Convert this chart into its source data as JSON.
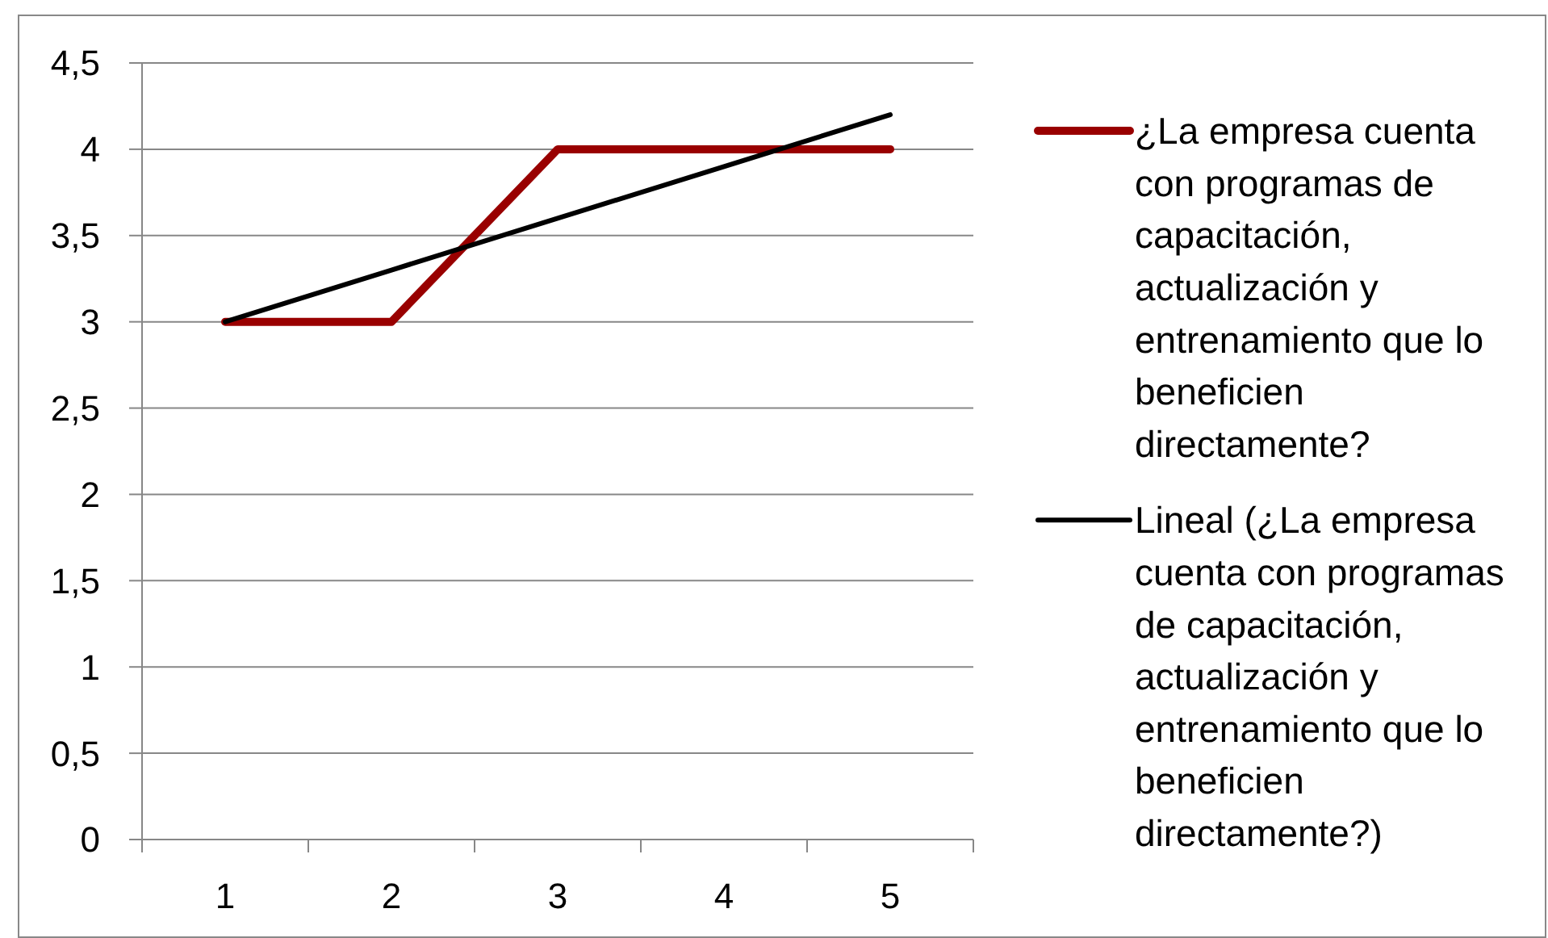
{
  "chart_data": {
    "type": "line",
    "categories": [
      "1",
      "2",
      "3",
      "4",
      "5"
    ],
    "series": [
      {
        "name": "¿La empresa cuenta con programas de capacitación, actualización y entrenamiento que lo beneficien directamente?",
        "color": "#990000",
        "values": [
          3,
          3,
          4,
          4,
          4
        ]
      },
      {
        "name": "Lineal (¿La empresa cuenta con programas de capacitación, actualización y entrenamiento que lo beneficien directamente?)",
        "type": "line",
        "color": "#000000",
        "values": [
          3,
          3.3,
          3.6,
          3.9,
          4.2
        ]
      }
    ],
    "ylim": [
      0,
      4.5
    ],
    "yticks": [
      0,
      {
        "value": 0.5,
        "label": "0,5"
      },
      1,
      {
        "value": 1.5,
        "label": "1,5"
      },
      2,
      {
        "value": 2.5,
        "label": "2,5"
      },
      3,
      {
        "value": 3.5,
        "label": "3,5"
      },
      4,
      {
        "value": 4.5,
        "label": "4,5"
      }
    ],
    "grid": "y",
    "legend": "right"
  }
}
